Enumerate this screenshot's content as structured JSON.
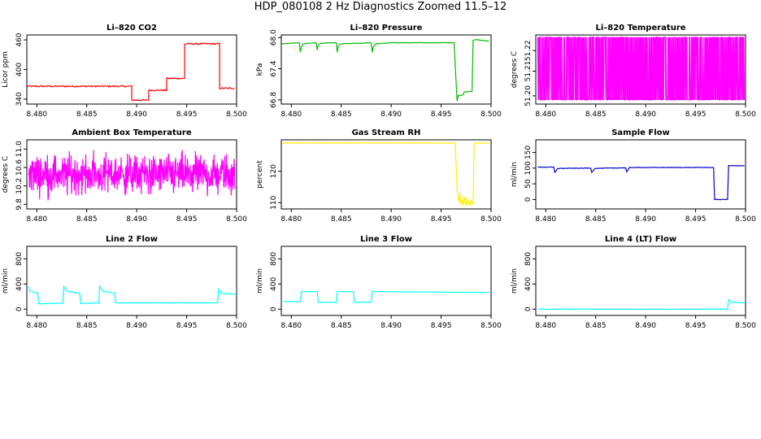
{
  "title": "HDP_080108  2 Hz Diagnostics Zoomed 11.5–12",
  "chart_data": [
    {
      "type": "line",
      "title": "Li–820 CO2",
      "xlabel": "",
      "ylabel": "Licor ppm",
      "color": "#ff0000",
      "xlim": [
        8.479,
        8.5
      ],
      "ylim": [
        330,
        470
      ],
      "xticks": [
        8.48,
        8.485,
        8.49,
        8.495,
        8.5
      ],
      "xtick_labels": [
        "8.480",
        "8.485",
        "8.490",
        "8.495",
        "8.500"
      ],
      "yticks": [
        340,
        400,
        460
      ],
      "ytick_labels": [
        "340",
        "400",
        "460"
      ],
      "noise": 1.5,
      "series": [
        {
          "x": [
            8.479,
            8.4895,
            8.4895,
            8.4912,
            8.4912,
            8.493,
            8.493,
            8.4948,
            8.4948,
            8.4983,
            8.4983,
            8.4998
          ],
          "y": [
            366,
            366,
            338,
            338,
            358,
            358,
            382,
            382,
            452,
            452,
            362,
            362
          ]
        }
      ]
    },
    {
      "type": "line",
      "title": "Li–820 Pressure",
      "xlabel": "",
      "ylabel": "kPa",
      "color": "#00bb00",
      "xlim": [
        8.479,
        8.5
      ],
      "ylim": [
        66.72,
        68.05
      ],
      "xticks": [
        8.48,
        8.485,
        8.49,
        8.495,
        8.5
      ],
      "xtick_labels": [
        "8.480",
        "8.485",
        "8.490",
        "8.495",
        "8.500"
      ],
      "yticks": [
        66.8,
        67.4,
        68.0
      ],
      "ytick_labels": [
        "66.8",
        "67.4",
        "68.0"
      ],
      "noise": 0.004,
      "series": [
        {
          "x": [
            8.479,
            8.4808,
            8.4809,
            8.481,
            8.4812,
            8.4825,
            8.4826,
            8.4827,
            8.483,
            8.4845,
            8.4846,
            8.4847,
            8.485,
            8.488,
            8.4881,
            8.4882,
            8.4885,
            8.49,
            8.4963,
            8.4964,
            8.4966,
            8.4967,
            8.4972,
            8.4973,
            8.4981,
            8.4982,
            8.4985,
            8.4998
          ],
          "y": [
            67.88,
            67.9,
            67.72,
            67.82,
            67.88,
            67.9,
            67.76,
            67.86,
            67.89,
            67.9,
            67.72,
            67.84,
            67.88,
            67.9,
            67.72,
            67.82,
            67.88,
            67.9,
            67.9,
            67.5,
            66.78,
            66.88,
            66.9,
            66.95,
            66.97,
            67.95,
            67.96,
            67.93
          ]
        }
      ]
    },
    {
      "type": "line",
      "title": "Li–820 Temperature",
      "xlabel": "",
      "ylabel": "degrees C",
      "color": "#ff00ff",
      "xlim": [
        8.479,
        8.5
      ],
      "ylim": [
        51.196,
        51.2296
      ],
      "xticks": [
        8.48,
        8.485,
        8.49,
        8.495,
        8.5
      ],
      "xtick_labels": [
        "8.480",
        "8.485",
        "8.490",
        "8.495",
        "8.500"
      ],
      "yticks": [
        51.2,
        51.212,
        51.222
      ],
      "ytick_labels": [
        "51.20",
        "51.21",
        "51.22"
      ],
      "pattern": "toggle",
      "levels": [
        51.198,
        51.2285
      ],
      "series": [
        {
          "x": [
            8.4792,
            8.4999
          ],
          "y": [
            51.198,
            51.2285
          ]
        }
      ]
    },
    {
      "type": "line",
      "title": "Ambient Box Temperature",
      "xlabel": "",
      "ylabel": "degrees C",
      "color": "#ff00ff",
      "xlim": [
        8.479,
        8.5
      ],
      "ylim": [
        9.7,
        11.2
      ],
      "xticks": [
        8.48,
        8.485,
        8.49,
        8.495,
        8.5
      ],
      "xtick_labels": [
        "8.480",
        "8.485",
        "8.490",
        "8.495",
        "8.500"
      ],
      "yticks": [
        9.8,
        10.2,
        10.6,
        11.0
      ],
      "ytick_labels": [
        "9.8",
        "10.2",
        "10.6",
        "11.0"
      ],
      "pattern": "noise",
      "mean": 10.45,
      "spread": 0.32,
      "clip": [
        9.78,
        11.1
      ],
      "series": [
        {
          "x": [
            8.4792,
            8.4999
          ],
          "y": [
            10.45,
            10.45
          ]
        }
      ]
    },
    {
      "type": "line",
      "title": "Gas Stream RH",
      "xlabel": "",
      "ylabel": "percent",
      "color": "#ffee00",
      "xlim": [
        8.479,
        8.5
      ],
      "ylim": [
        108,
        130
      ],
      "xticks": [
        8.48,
        8.485,
        8.49,
        8.495,
        8.5
      ],
      "xtick_labels": [
        "8.480",
        "8.485",
        "8.490",
        "8.495",
        "8.500"
      ],
      "yticks": [
        110,
        120
      ],
      "ytick_labels": [
        "110",
        "120"
      ],
      "noise": 0.05,
      "series": [
        {
          "x": [
            8.479,
            8.4964,
            8.4965,
            8.4966,
            8.4967,
            8.4968,
            8.4969,
            8.497,
            8.4971,
            8.4972,
            8.4973,
            8.4974,
            8.4975,
            8.4976,
            8.4977,
            8.4978,
            8.4979,
            8.498,
            8.4981,
            8.4982,
            8.4983,
            8.4998
          ],
          "y": [
            129,
            129,
            122,
            114,
            112,
            110,
            113,
            109.5,
            111,
            109,
            112,
            110,
            109,
            111.5,
            109.5,
            110.5,
            109,
            111,
            109.5,
            110,
            129,
            129
          ]
        }
      ]
    },
    {
      "type": "line",
      "title": "Sample Flow",
      "xlabel": "",
      "ylabel": "ml/min",
      "color": "#0000cc",
      "xlim": [
        8.479,
        8.5
      ],
      "ylim": [
        -30,
        190
      ],
      "xticks": [
        8.48,
        8.485,
        8.49,
        8.495,
        8.5
      ],
      "xtick_labels": [
        "8.480",
        "8.485",
        "8.490",
        "8.495",
        "8.500"
      ],
      "yticks": [
        0,
        50,
        100,
        150
      ],
      "ytick_labels": [
        "0",
        "50",
        "100",
        "150"
      ],
      "noise": 0.8,
      "series": [
        {
          "x": [
            8.4792,
            8.4808,
            8.4809,
            8.4812,
            8.4845,
            8.4846,
            8.4849,
            8.488,
            8.4881,
            8.4884,
            8.4968,
            8.4969,
            8.4982,
            8.4983,
            8.4999
          ],
          "y": [
            103,
            103,
            86,
            99,
            100,
            86,
            99,
            101,
            88,
            102,
            102,
            0,
            0,
            108,
            107
          ]
        }
      ]
    },
    {
      "type": "line",
      "title": "Line 2 Flow",
      "xlabel": "",
      "ylabel": "ml/min",
      "color": "#00ffff",
      "xlim": [
        8.479,
        8.5
      ],
      "ylim": [
        -100,
        1000
      ],
      "xticks": [
        8.48,
        8.485,
        8.49,
        8.495,
        8.5
      ],
      "xtick_labels": [
        "8.480",
        "8.485",
        "8.490",
        "8.495",
        "8.500"
      ],
      "yticks": [
        0,
        400,
        800
      ],
      "ytick_labels": [
        "0",
        "400",
        "800"
      ],
      "noise": 3,
      "series": [
        {
          "x": [
            8.4792,
            8.4793,
            8.4801,
            8.4802,
            8.4826,
            8.4827,
            8.483,
            8.4843,
            8.4844,
            8.4862,
            8.4863,
            8.4866,
            8.4878,
            8.4879,
            8.49,
            8.4981,
            8.4982,
            8.4985,
            8.4999
          ],
          "y": [
            360,
            290,
            250,
            85,
            95,
            360,
            290,
            250,
            90,
            100,
            360,
            290,
            250,
            100,
            100,
            100,
            320,
            250,
            240
          ]
        }
      ]
    },
    {
      "type": "line",
      "title": "Line 3 Flow",
      "xlabel": "",
      "ylabel": "ml/min",
      "color": "#00ffff",
      "xlim": [
        8.479,
        8.5
      ],
      "ylim": [
        -100,
        1000
      ],
      "xticks": [
        8.48,
        8.485,
        8.49,
        8.495,
        8.5
      ],
      "xtick_labels": [
        "8.480",
        "8.485",
        "8.490",
        "8.495",
        "8.500"
      ],
      "yticks": [
        0,
        400,
        800
      ],
      "ytick_labels": [
        "0",
        "400",
        "800"
      ],
      "noise": 3,
      "series": [
        {
          "x": [
            8.4792,
            8.4809,
            8.481,
            8.4826,
            8.4827,
            8.4845,
            8.4846,
            8.4862,
            8.4863,
            8.488,
            8.4881,
            8.4998
          ],
          "y": [
            120,
            120,
            280,
            280,
            110,
            110,
            280,
            280,
            110,
            110,
            280,
            265
          ]
        }
      ]
    },
    {
      "type": "line",
      "title": "Line 4 (LT) Flow",
      "xlabel": "",
      "ylabel": "ml/min",
      "color": "#00ffff",
      "xlim": [
        8.479,
        8.5
      ],
      "ylim": [
        -100,
        1000
      ],
      "xticks": [
        8.48,
        8.485,
        8.49,
        8.495,
        8.5
      ],
      "xtick_labels": [
        "8.480",
        "8.485",
        "8.490",
        "8.495",
        "8.500"
      ],
      "yticks": [
        0,
        400,
        800
      ],
      "ytick_labels": [
        "0",
        "400",
        "800"
      ],
      "noise": 2,
      "series": [
        {
          "x": [
            8.4792,
            8.4982,
            8.4983,
            8.4986,
            8.4999
          ],
          "y": [
            0,
            0,
            150,
            110,
            100
          ]
        }
      ]
    }
  ]
}
